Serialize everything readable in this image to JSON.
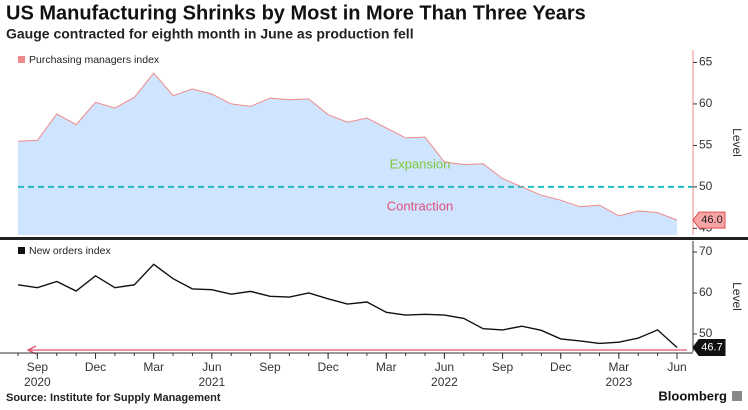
{
  "title": "US Manufacturing Shrinks by Most in More Than Three Years",
  "subtitle": "Gauge contracted for eighth month in June as production fell",
  "source": "Source: Institute for Supply Management",
  "logo": "Bloomberg",
  "chart_data": [
    {
      "type": "area",
      "x": [
        "2020-08",
        "2020-09",
        "2020-10",
        "2020-11",
        "2020-12",
        "2021-01",
        "2021-02",
        "2021-03",
        "2021-04",
        "2021-05",
        "2021-06",
        "2021-07",
        "2021-08",
        "2021-09",
        "2021-10",
        "2021-11",
        "2021-12",
        "2022-01",
        "2022-02",
        "2022-03",
        "2022-04",
        "2022-05",
        "2022-06",
        "2022-07",
        "2022-08",
        "2022-09",
        "2022-10",
        "2022-11",
        "2022-12",
        "2023-01",
        "2023-02",
        "2023-03",
        "2023-04",
        "2023-05",
        "2023-06"
      ],
      "series": [
        {
          "name": "Purchasing managers index",
          "color": "#f08a8a",
          "fill": "#cfe5ff",
          "values": [
            55.5,
            55.6,
            58.8,
            57.5,
            60.2,
            59.5,
            60.8,
            63.7,
            61.0,
            61.8,
            61.2,
            60.0,
            59.7,
            60.7,
            60.5,
            60.6,
            58.7,
            57.8,
            58.3,
            57.1,
            55.9,
            56.0,
            53.0,
            52.7,
            52.8,
            51.0,
            50.0,
            49.0,
            48.4,
            47.6,
            47.8,
            46.5,
            47.1,
            46.9,
            46.0
          ]
        }
      ],
      "end_label": "46.0",
      "ylim": [
        44.2,
        66.5
      ],
      "yticks": [
        45,
        50,
        55,
        60,
        65
      ],
      "ylabel": "Level",
      "reference_line": {
        "value": 50,
        "color": "#22bcc4"
      },
      "annotations": [
        {
          "text": "Expansion",
          "color": "#7cc83c"
        },
        {
          "text": "Contraction",
          "color": "#e0507a"
        }
      ]
    },
    {
      "type": "line",
      "x": [
        "2020-08",
        "2020-09",
        "2020-10",
        "2020-11",
        "2020-12",
        "2021-01",
        "2021-02",
        "2021-03",
        "2021-04",
        "2021-05",
        "2021-06",
        "2021-07",
        "2021-08",
        "2021-09",
        "2021-10",
        "2021-11",
        "2021-12",
        "2022-01",
        "2022-02",
        "2022-03",
        "2022-04",
        "2022-05",
        "2022-06",
        "2022-07",
        "2022-08",
        "2022-09",
        "2022-10",
        "2022-11",
        "2022-12",
        "2023-01",
        "2023-02",
        "2023-03",
        "2023-04",
        "2023-05",
        "2023-06"
      ],
      "series": [
        {
          "name": "New orders index",
          "color": "#111111",
          "values": [
            62.0,
            61.3,
            62.8,
            60.5,
            64.2,
            61.3,
            62.0,
            67.0,
            63.5,
            61.0,
            60.8,
            59.7,
            60.4,
            59.2,
            59.0,
            60.0,
            58.6,
            57.3,
            57.8,
            55.3,
            54.6,
            54.8,
            54.6,
            53.8,
            51.3,
            51.0,
            51.9,
            50.9,
            48.8,
            48.3,
            47.7,
            48.0,
            49.0,
            51.0,
            46.7
          ]
        }
      ],
      "end_label": "46.7",
      "ylim": [
        45.6,
        72.7
      ],
      "yticks": [
        50,
        60,
        70
      ],
      "ylabel": "Level",
      "xticks": [
        {
          "value": "2020-09",
          "label": "Sep"
        },
        {
          "value": "2020-12",
          "label": "Dec"
        },
        {
          "value": "2021-03",
          "label": "Mar"
        },
        {
          "value": "2021-06",
          "label": "Jun"
        },
        {
          "value": "2021-09",
          "label": "Sep"
        },
        {
          "value": "2021-12",
          "label": "Dec"
        },
        {
          "value": "2022-03",
          "label": "Mar"
        },
        {
          "value": "2022-06",
          "label": "Jun"
        },
        {
          "value": "2022-09",
          "label": "Sep"
        },
        {
          "value": "2022-12",
          "label": "Dec"
        },
        {
          "value": "2023-03",
          "label": "Mar"
        },
        {
          "value": "2023-06",
          "label": "Jun"
        }
      ],
      "xtick_years": [
        {
          "value": "2020-09",
          "label": "2020"
        },
        {
          "value": "2021-06",
          "label": "2021"
        },
        {
          "value": "2022-06",
          "label": "2022"
        },
        {
          "value": "2023-03",
          "label": "2023"
        }
      ]
    }
  ]
}
